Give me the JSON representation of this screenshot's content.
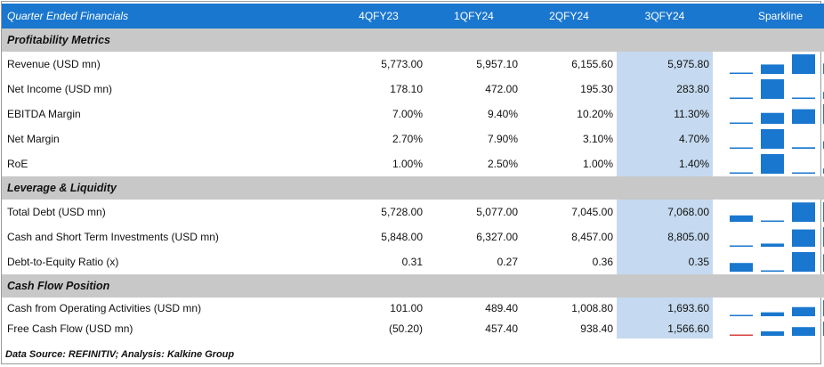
{
  "header": {
    "title": "Quarter Ended Financials",
    "columns": [
      "4QFY23",
      "1QFY24",
      "2QFY24",
      "3QFY24"
    ],
    "sparkline_label": "Sparkline"
  },
  "colors": {
    "header_bg": "#1a77cf",
    "bar": "#1a77cf",
    "negative": "#d84040",
    "highlight": "#c5daf0",
    "section_bg": "#c8c8c8"
  },
  "sections": [
    {
      "title": "Profitability Metrics",
      "rows": [
        {
          "label": "Revenue (USD mn)",
          "values": [
            "5,773.00",
            "5,957.10",
            "6,155.60",
            "5,975.80"
          ],
          "raw": [
            5773.0,
            5957.1,
            6155.6,
            5975.8
          ]
        },
        {
          "label": "Net Income (USD mn)",
          "values": [
            "178.10",
            "472.00",
            "195.30",
            "283.80"
          ],
          "raw": [
            178.1,
            472.0,
            195.3,
            283.8
          ]
        },
        {
          "label": "EBITDA Margin",
          "values": [
            "7.00%",
            "9.40%",
            "10.20%",
            "11.30%"
          ],
          "raw": [
            7.0,
            9.4,
            10.2,
            11.3
          ]
        },
        {
          "label": "Net Margin",
          "values": [
            "2.70%",
            "7.90%",
            "3.10%",
            "4.70%"
          ],
          "raw": [
            2.7,
            7.9,
            3.1,
            4.7
          ]
        },
        {
          "label": "RoE",
          "values": [
            "1.00%",
            "2.50%",
            "1.00%",
            "1.40%"
          ],
          "raw": [
            1.0,
            2.5,
            1.0,
            1.4
          ]
        }
      ]
    },
    {
      "title": "Leverage & Liquidity",
      "rows": [
        {
          "label": "Total Debt (USD mn)",
          "values": [
            "5,728.00",
            "5,077.00",
            "7,045.00",
            "7,068.00"
          ],
          "raw": [
            5728.0,
            5077.0,
            7045.0,
            7068.0
          ]
        },
        {
          "label": "Cash and Short Term Investments (USD mn)",
          "values": [
            "5,848.00",
            "6,327.00",
            "8,457.00",
            "8,805.00"
          ],
          "raw": [
            5848.0,
            6327.0,
            8457.0,
            8805.0
          ]
        },
        {
          "label": "Debt-to-Equity Ratio (x)",
          "values": [
            "0.31",
            "0.27",
            "0.36",
            "0.35"
          ],
          "raw": [
            0.31,
            0.27,
            0.36,
            0.35
          ]
        }
      ]
    },
    {
      "title": "Cash Flow Position",
      "rows": [
        {
          "label": "Cash from Operating Activities (USD mn)",
          "values": [
            "101.00",
            "489.40",
            "1,008.80",
            "1,693.60"
          ],
          "raw": [
            101.0,
            489.4,
            1008.8,
            1693.6
          ]
        },
        {
          "label": "Free Cash Flow (USD mn)",
          "values": [
            "(50.20)",
            "457.40",
            "938.40",
            "1,566.60"
          ],
          "raw": [
            -50.2,
            457.4,
            938.4,
            1566.6
          ]
        }
      ]
    }
  ],
  "footer": "Data Source: REFINITIV; Analysis: Kalkine Group"
}
